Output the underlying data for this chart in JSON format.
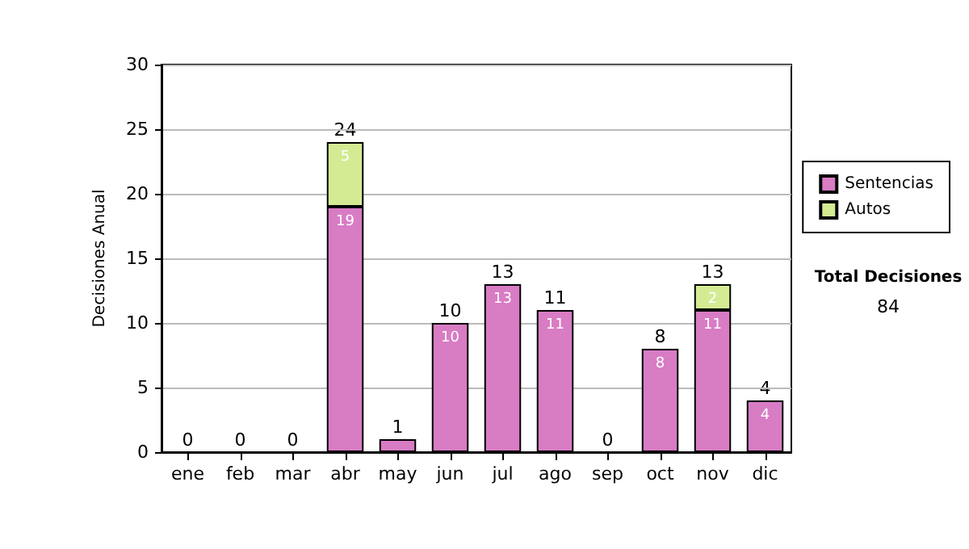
{
  "chart_data": {
    "type": "bar",
    "stacked": true,
    "ylabel": "Decisiones Anual",
    "categories": [
      "ene",
      "feb",
      "mar",
      "abr",
      "may",
      "jun",
      "jul",
      "ago",
      "sep",
      "oct",
      "nov",
      "dic"
    ],
    "series": [
      {
        "name": "Sentencias",
        "color": "#d87cc4",
        "values": [
          0,
          0,
          0,
          19,
          1,
          10,
          13,
          11,
          0,
          8,
          11,
          4
        ],
        "value_labels": [
          null,
          null,
          null,
          "19",
          null,
          "10",
          "13",
          "11",
          null,
          "8",
          "11",
          "4"
        ]
      },
      {
        "name": "Autos",
        "color": "#d4eb94",
        "values": [
          0,
          0,
          0,
          5,
          0,
          0,
          0,
          0,
          0,
          0,
          2,
          0
        ],
        "value_labels": [
          null,
          null,
          null,
          "5",
          null,
          null,
          null,
          null,
          null,
          null,
          "2",
          null
        ]
      }
    ],
    "totals": [
      "0",
      "0",
      "0",
      "24",
      "1",
      "10",
      "13",
      "11",
      "0",
      "8",
      "13",
      "4"
    ],
    "ylim": [
      0,
      30
    ],
    "yticks": [
      0,
      5,
      10,
      15,
      20,
      25,
      30
    ],
    "grid": "y",
    "legend": "right",
    "annotations": [
      "Total Decisiones",
      "84"
    ]
  }
}
